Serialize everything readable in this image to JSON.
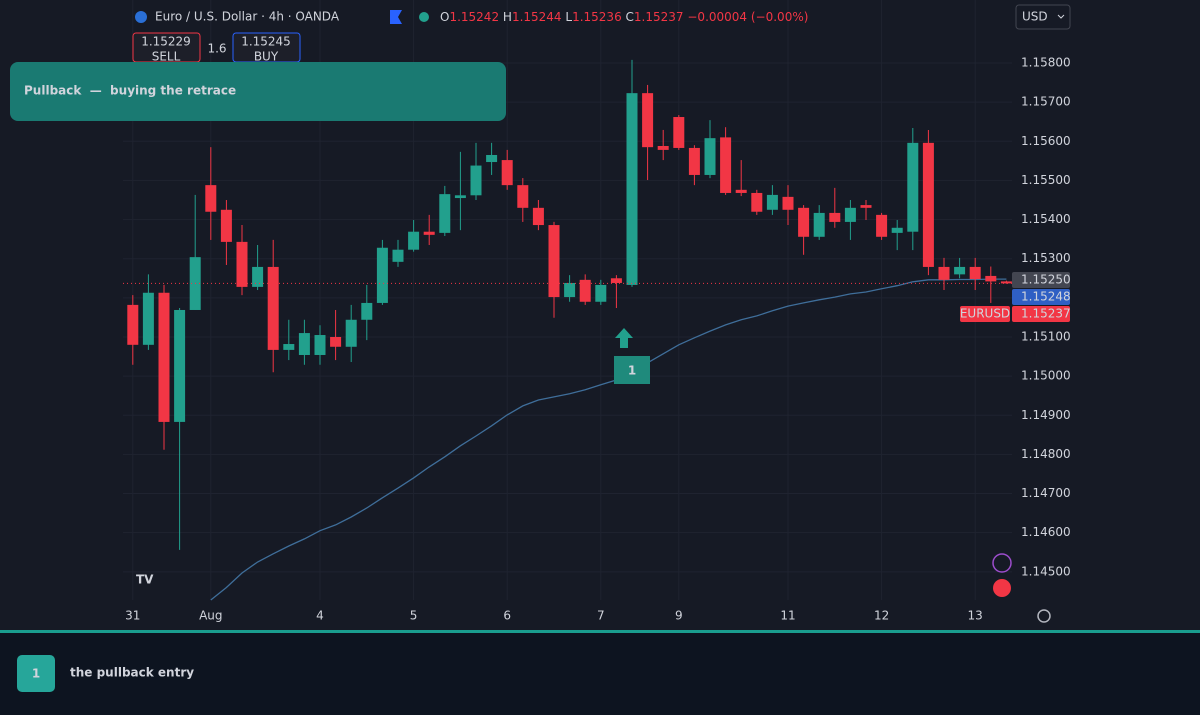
{
  "header": {
    "symbol": "Euro / U.S. Dollar · 4h · OANDA",
    "o_label": "O",
    "o": "1.15242",
    "h_label": "H",
    "h": "1.15244",
    "l_label": "L",
    "l": "1.15236",
    "c_label": "C",
    "c": "1.15237",
    "change": "−0.00004 (−0.00%)",
    "currency": "USD"
  },
  "trade": {
    "sell_price": "1.15229",
    "sell": "SELL",
    "spread": "1.6",
    "buy_price": "1.15245",
    "buy": "BUY"
  },
  "banner": {
    "title": "Pullback  —  buying the retrace"
  },
  "footer": {
    "number": "1",
    "text": "the pullback entry"
  },
  "chart_data": {
    "type": "candlestick",
    "annotation": "1",
    "categories": [
      "31",
      null,
      null,
      null,
      null,
      "Aug",
      null,
      null,
      null,
      null,
      null,
      null,
      "4",
      null,
      null,
      null,
      null,
      null,
      "5",
      null,
      null,
      null,
      null,
      null,
      "6",
      null,
      null,
      null,
      null,
      null,
      "7",
      null,
      null,
      null,
      null,
      "9",
      null,
      null,
      null,
      null,
      null,
      null,
      "11",
      null,
      null,
      null,
      null,
      null,
      "12",
      null,
      null,
      null,
      null,
      null,
      "13",
      null,
      null
    ],
    "open": [
      1.15182,
      1.1508,
      1.15213,
      1.14883,
      1.15169,
      1.15488,
      1.15425,
      1.15343,
      1.15228,
      1.15279,
      1.15067,
      1.15054,
      1.15054,
      1.151,
      1.15075,
      1.15144,
      1.15187,
      1.15292,
      1.15323,
      1.15369,
      1.15366,
      1.15455,
      1.15462,
      1.15547,
      1.15552,
      1.15488,
      1.1543,
      1.15386,
      1.15202,
      1.15246,
      1.1519,
      1.1525,
      1.15233,
      1.15723,
      1.15588,
      1.15662,
      1.15583,
      1.15514,
      1.1561,
      1.15476,
      1.15468,
      1.15425,
      1.15458,
      1.1543,
      1.15356,
      1.15417,
      1.15394,
      1.15437,
      1.15412,
      1.15366,
      1.15369,
      1.15596,
      1.15279,
      1.1526,
      1.15279,
      1.15256,
      1.15242
    ],
    "high": [
      1.15207,
      1.1526,
      1.15233,
      1.15174,
      1.15463,
      1.15585,
      1.1545,
      1.15386,
      1.15335,
      1.15348,
      1.15144,
      1.15144,
      1.1513,
      1.15169,
      1.15182,
      1.15233,
      1.15348,
      1.15348,
      1.15399,
      1.15412,
      1.15486,
      1.15573,
      1.15596,
      1.15596,
      1.15578,
      1.15506,
      1.1545,
      1.15394,
      1.15258,
      1.1526,
      1.15246,
      1.15258,
      1.15808,
      1.15744,
      1.15629,
      1.15667,
      1.1559,
      1.15654,
      1.15636,
      1.15552,
      1.15476,
      1.15488,
      1.15488,
      1.15437,
      1.15437,
      1.15481,
      1.1545,
      1.1545,
      1.15417,
      1.15399,
      1.15634,
      1.15629,
      1.15302,
      1.15302,
      1.15302,
      1.1528,
      1.15244
    ],
    "low": [
      1.15029,
      1.15067,
      1.14812,
      1.14556,
      1.15169,
      1.15348,
      1.15284,
      1.15207,
      1.1522,
      1.1501,
      1.15041,
      1.15029,
      1.15029,
      1.15041,
      1.15036,
      1.15092,
      1.15182,
      1.15279,
      1.15318,
      1.15335,
      1.15358,
      1.15373,
      1.1545,
      1.15514,
      1.15476,
      1.15394,
      1.15373,
      1.15149,
      1.1519,
      1.15182,
      1.15182,
      1.15174,
      1.15228,
      1.15501,
      1.15552,
      1.15578,
      1.15488,
      1.15506,
      1.15463,
      1.1546,
      1.15412,
      1.15412,
      1.15386,
      1.1531,
      1.15348,
      1.15379,
      1.15348,
      1.15399,
      1.15348,
      1.15322,
      1.15322,
      1.15258,
      1.1522,
      1.1525,
      1.1522,
      1.15187,
      1.15236
    ],
    "close": [
      1.1508,
      1.15213,
      1.14883,
      1.15169,
      1.15304,
      1.1542,
      1.15343,
      1.15228,
      1.15279,
      1.15067,
      1.15082,
      1.1511,
      1.15105,
      1.15075,
      1.15144,
      1.15187,
      1.15328,
      1.15323,
      1.15369,
      1.15361,
      1.15465,
      1.15462,
      1.15538,
      1.15565,
      1.15488,
      1.1543,
      1.15386,
      1.15202,
      1.15238,
      1.1519,
      1.15233,
      1.15238,
      1.15723,
      1.15585,
      1.15578,
      1.15583,
      1.15514,
      1.15608,
      1.15468,
      1.15468,
      1.1542,
      1.15463,
      1.15425,
      1.15356,
      1.15417,
      1.15394,
      1.1543,
      1.1543,
      1.15356,
      1.15379,
      1.15596,
      1.15279,
      1.15246,
      1.15279,
      1.15248,
      1.15242,
      1.15237
    ],
    "line_values": [
      null,
      null,
      null,
      null,
      null,
      1.14428,
      1.1446,
      1.14497,
      1.14525,
      1.14546,
      1.14566,
      1.14584,
      1.14605,
      1.1462,
      1.1464,
      1.14663,
      1.14689,
      1.14714,
      1.1474,
      1.14768,
      1.14794,
      1.14822,
      1.14847,
      1.14873,
      1.14901,
      1.14924,
      1.14939,
      1.14947,
      1.14955,
      1.14965,
      1.14978,
      1.1499,
      1.15013,
      1.15034,
      1.15057,
      1.1508,
      1.15098,
      1.15115,
      1.15131,
      1.15144,
      1.15154,
      1.15167,
      1.15179,
      1.15187,
      1.15195,
      1.15202,
      1.1521,
      1.15215,
      1.15223,
      1.15231,
      1.15241,
      1.15246,
      1.15246,
      1.15247,
      1.15247,
      1.15248,
      1.15248
    ],
    "line_color": "#3f6e9a",
    "up_color": "#22a08d",
    "down_color": "#f23645",
    "ylim": [
      1.14428,
      1.15961
    ],
    "yticks": [
      {
        "value": 1.158,
        "label": "1.15800"
      },
      {
        "value": 1.157,
        "label": "1.15700"
      },
      {
        "value": 1.156,
        "label": "1.15600"
      },
      {
        "value": 1.155,
        "label": "1.15500"
      },
      {
        "value": 1.154,
        "label": "1.15400"
      },
      {
        "value": 1.153,
        "label": "1.15300"
      },
      {
        "value": 1.152,
        "label": "1.15200"
      },
      {
        "value": 1.151,
        "label": "1.15100"
      },
      {
        "value": 1.15,
        "label": "1.15000"
      },
      {
        "value": 1.149,
        "label": "1.14900"
      },
      {
        "value": 1.148,
        "label": "1.14800"
      },
      {
        "value": 1.147,
        "label": "1.14700"
      },
      {
        "value": 1.146,
        "label": "1.14600"
      },
      {
        "value": 1.145,
        "label": "1.14500"
      }
    ],
    "price_labels": [
      {
        "label": "1.15250",
        "color": "#434651"
      },
      {
        "label": "1.15248",
        "color": "#2f5fc4"
      },
      {
        "label": "1.15237",
        "color": "#f23645",
        "name": "EURUSD"
      }
    ],
    "grid": true
  }
}
